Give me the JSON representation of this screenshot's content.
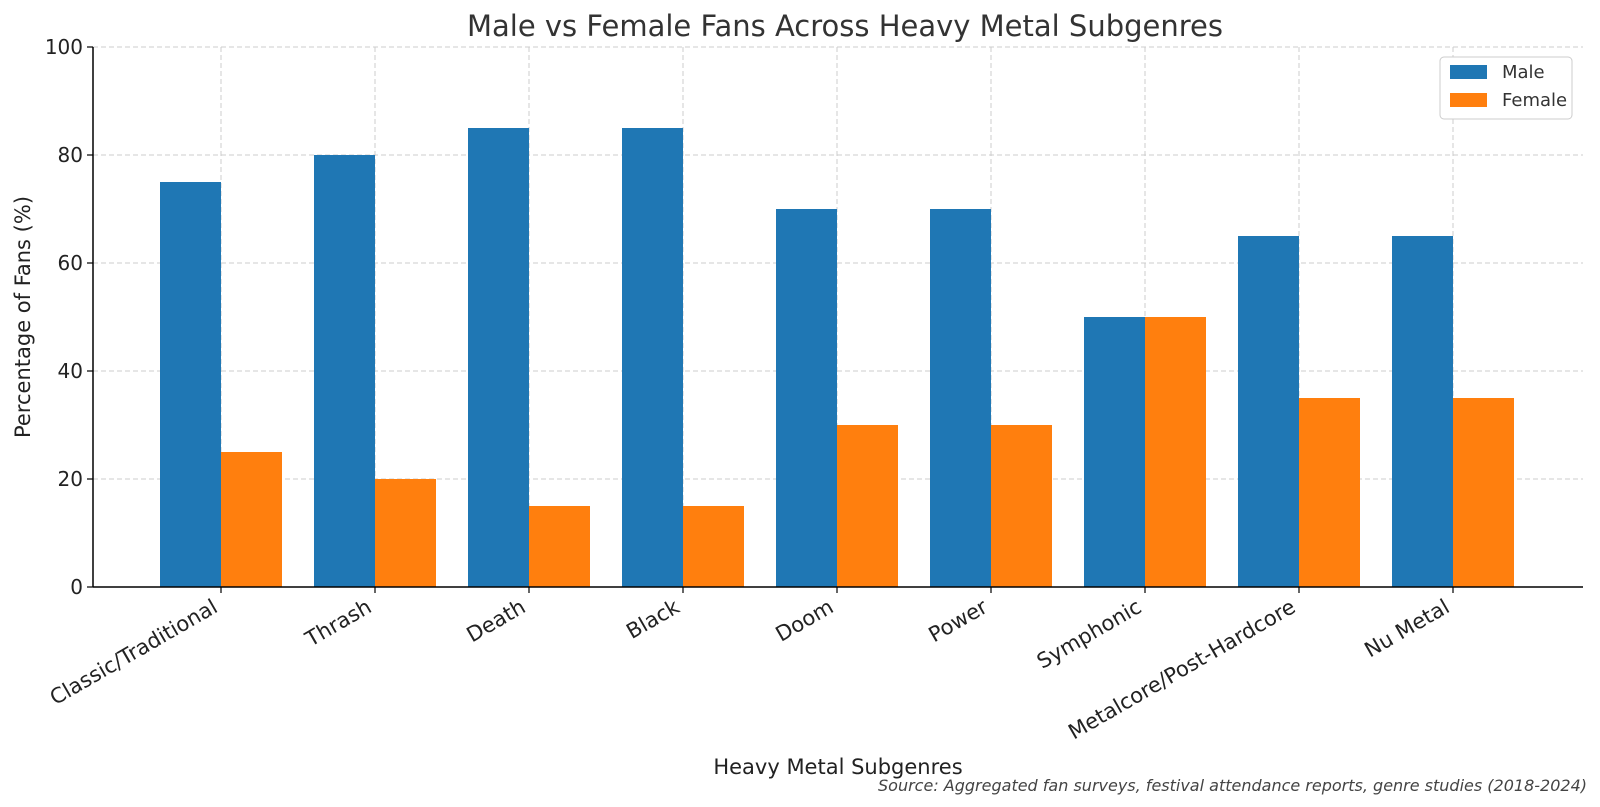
{
  "chart_data": {
    "type": "bar",
    "title": "Male vs Female Fans Across Heavy Metal Subgenres",
    "xlabel": "Heavy Metal Subgenres",
    "ylabel": "Percentage of Fans (%)",
    "source": "Source: Aggregated fan surveys, festival attendance reports, genre studies (2018-2024)",
    "categories": [
      "Classic/Traditional",
      "Thrash",
      "Death",
      "Black",
      "Doom",
      "Power",
      "Symphonic",
      "Metalcore/Post-Hardcore",
      "Nu Metal"
    ],
    "series": [
      {
        "name": "Male",
        "color": "#1f77b4",
        "values": [
          75,
          80,
          85,
          85,
          70,
          70,
          50,
          65,
          65
        ]
      },
      {
        "name": "Female",
        "color": "#ff7f0e",
        "values": [
          25,
          20,
          15,
          15,
          30,
          30,
          50,
          35,
          35
        ]
      }
    ],
    "ylim": [
      0,
      100
    ],
    "yticks": [
      0,
      20,
      40,
      60,
      80,
      100
    ],
    "grid": true,
    "legend_position": "top-right"
  }
}
